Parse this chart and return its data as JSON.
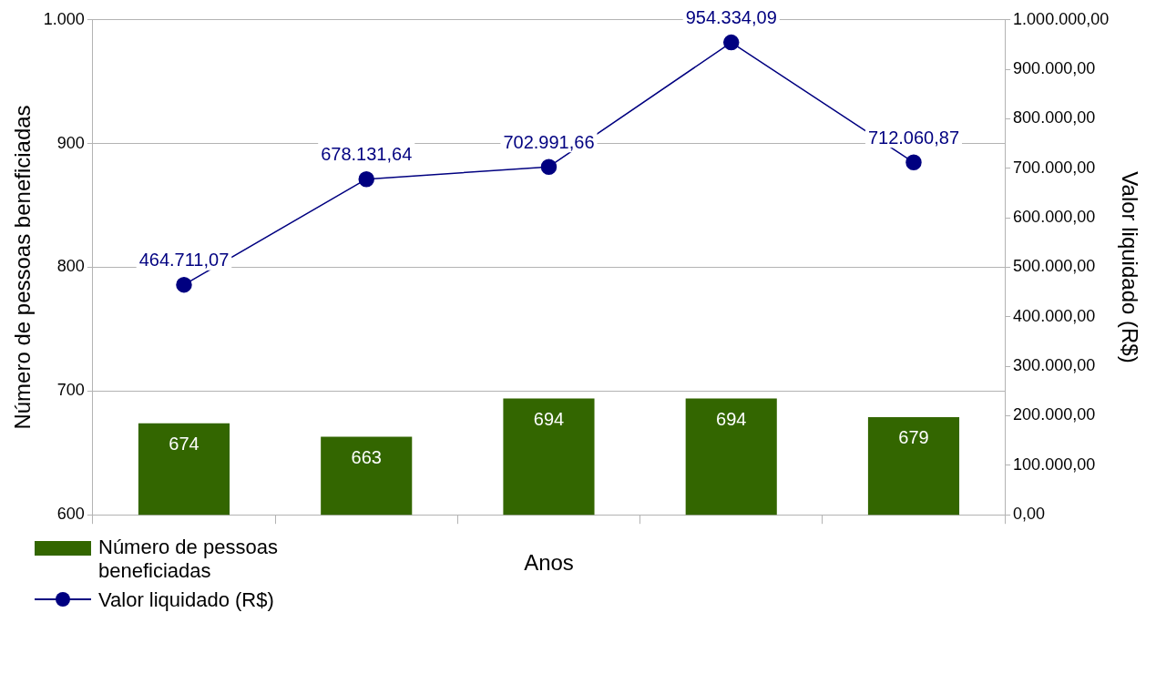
{
  "chart_data": {
    "type": "bar",
    "xlabel": "Anos",
    "ylabel": "Número de pessoas beneficiadas",
    "y2label": "Valor liquidado (R$)",
    "categories": [
      null,
      null,
      null,
      null,
      null
    ],
    "series": [
      {
        "name": "Número de pessoas beneficiadas",
        "color": "#336600",
        "values": [
          674,
          663,
          694,
          694,
          679
        ],
        "value_labels": [
          "674",
          "663",
          "694",
          "694",
          "679"
        ]
      },
      {
        "name": "Valor liquidado (R$)",
        "type": "line",
        "axis": "y2",
        "color": "#000080",
        "marker": "circle",
        "values": [
          464711.07,
          678131.64,
          702991.66,
          954334.09,
          712060.87
        ],
        "value_labels": [
          "464.711,07",
          "678.131,64",
          "702.991,66",
          "954.334,09",
          "712.060,87"
        ]
      }
    ],
    "ylim": [
      600,
      1000
    ],
    "yticks": [
      600,
      700,
      800,
      900,
      {
        "value": 1000,
        "label": "1.000"
      }
    ],
    "y2lim": [
      0,
      1000000
    ],
    "y2ticks": [
      {
        "value": 0,
        "label": "0,00"
      },
      {
        "value": 100000,
        "label": "100.000,00"
      },
      {
        "value": 200000,
        "label": "200.000,00"
      },
      {
        "value": 300000,
        "label": "300.000,00"
      },
      {
        "value": 400000,
        "label": "400.000,00"
      },
      {
        "value": 500000,
        "label": "500.000,00"
      },
      {
        "value": 600000,
        "label": "600.000,00"
      },
      {
        "value": 700000,
        "label": "700.000,00"
      },
      {
        "value": 800000,
        "label": "800.000,00"
      },
      {
        "value": 900000,
        "label": "900.000,00"
      },
      {
        "value": 1000000,
        "label": "1.000.000,00"
      }
    ],
    "grid": "y",
    "legend": "bottom left"
  }
}
